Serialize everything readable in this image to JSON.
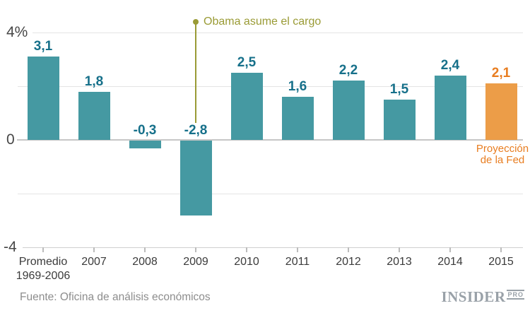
{
  "chart_data": {
    "type": "bar",
    "categories": [
      [
        "Promedio",
        "1969-2006"
      ],
      [
        "2007"
      ],
      [
        "2008"
      ],
      [
        "2009"
      ],
      [
        "2010"
      ],
      [
        "2011"
      ],
      [
        "2012"
      ],
      [
        "2013"
      ],
      [
        "2014"
      ],
      [
        "2015"
      ]
    ],
    "values": [
      3.1,
      1.8,
      -0.3,
      -2.8,
      2.5,
      1.6,
      2.2,
      1.5,
      2.4,
      2.1
    ],
    "value_labels": [
      "3,1",
      "1,8",
      "-0,3",
      "-2,8",
      "2,5",
      "1,6",
      "2,2",
      "1,5",
      "2,4",
      "2,1"
    ],
    "highlight_index": 9,
    "title": "",
    "xlabel": "",
    "ylabel": "",
    "ylim": [
      -4,
      4
    ],
    "grid": true,
    "gridline_values": [
      4,
      2,
      0,
      -2,
      -4
    ],
    "yticks": [
      {
        "value": 4,
        "label": "4%"
      },
      {
        "value": 0,
        "label": "0"
      },
      {
        "value": -4,
        "label": "-4"
      }
    ],
    "legend_position": "none",
    "annotation": {
      "text": "Obama asume el cargo",
      "category_index": 3
    },
    "highlight_note_lines": [
      "Proyección",
      "de la Fed"
    ],
    "colors": {
      "bar": "#4599a2",
      "highlight_bar": "#ec9d48",
      "value_label": "#16708a",
      "highlight_label": "#e87d20",
      "annotation": "#9a9b35"
    }
  },
  "footer": {
    "source": "Fuente: Oficina de análisis económicos",
    "logo_main": "INSIDER",
    "logo_sub": "PRO"
  }
}
